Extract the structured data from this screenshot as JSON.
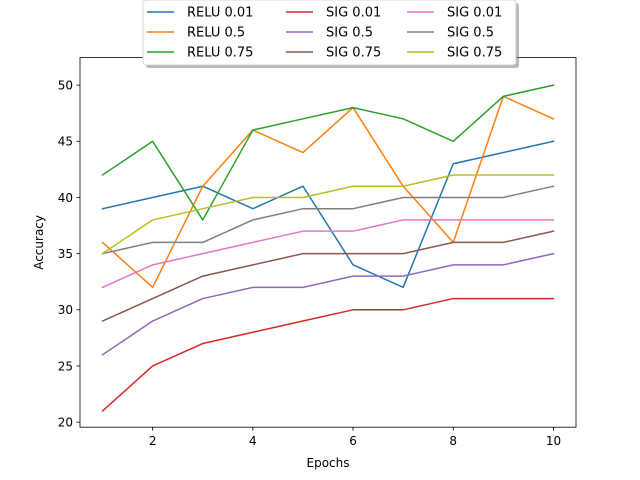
{
  "chart_data": {
    "type": "line",
    "title": "",
    "xlabel": "Epochs",
    "ylabel": "Accuracy",
    "x": [
      1,
      2,
      3,
      4,
      5,
      6,
      7,
      8,
      9,
      10
    ],
    "xlim": [
      0.55,
      10.45
    ],
    "ylim": [
      19.55,
      52.45
    ],
    "xticks": [
      2,
      4,
      6,
      8,
      10
    ],
    "yticks": [
      20,
      25,
      30,
      35,
      40,
      45,
      50
    ],
    "grid": false,
    "legend_placement": "upper-center-outside",
    "legend_columns": 3,
    "series": [
      {
        "name": "RELU 0.01",
        "color": "#1f77b4",
        "values": [
          39,
          40,
          41,
          39,
          41,
          34,
          32,
          43,
          44,
          45
        ]
      },
      {
        "name": "RELU 0.5",
        "color": "#ff7f0e",
        "values": [
          36,
          32,
          41,
          46,
          44,
          48,
          41,
          36,
          49,
          47
        ]
      },
      {
        "name": "RELU 0.75",
        "color": "#2ca02c",
        "values": [
          42,
          45,
          38,
          46,
          47,
          48,
          47,
          45,
          49,
          50
        ]
      },
      {
        "name": "SIG 0.01",
        "color": "#d62728",
        "values": [
          21,
          25,
          27,
          28,
          29,
          30,
          30,
          31,
          31,
          31
        ]
      },
      {
        "name": "SIG 0.5",
        "color": "#9467bd",
        "values": [
          26,
          29,
          31,
          32,
          32,
          33,
          33,
          34,
          34,
          35
        ]
      },
      {
        "name": "SIG 0.75",
        "color": "#8c564b",
        "values": [
          29,
          31,
          33,
          34,
          35,
          35,
          35,
          36,
          36,
          37
        ]
      },
      {
        "name": "SIG 0.01",
        "color": "#e377c2",
        "values": [
          32,
          34,
          35,
          36,
          37,
          37,
          38,
          38,
          38,
          38
        ]
      },
      {
        "name": "SIG 0.5",
        "color": "#7f7f7f",
        "values": [
          35,
          36,
          36,
          38,
          39,
          39,
          40,
          40,
          40,
          41
        ]
      },
      {
        "name": "SIG 0.75",
        "color": "#bcbd22",
        "values": [
          35,
          38,
          39,
          40,
          40,
          41,
          41,
          42,
          42,
          42
        ]
      }
    ]
  }
}
